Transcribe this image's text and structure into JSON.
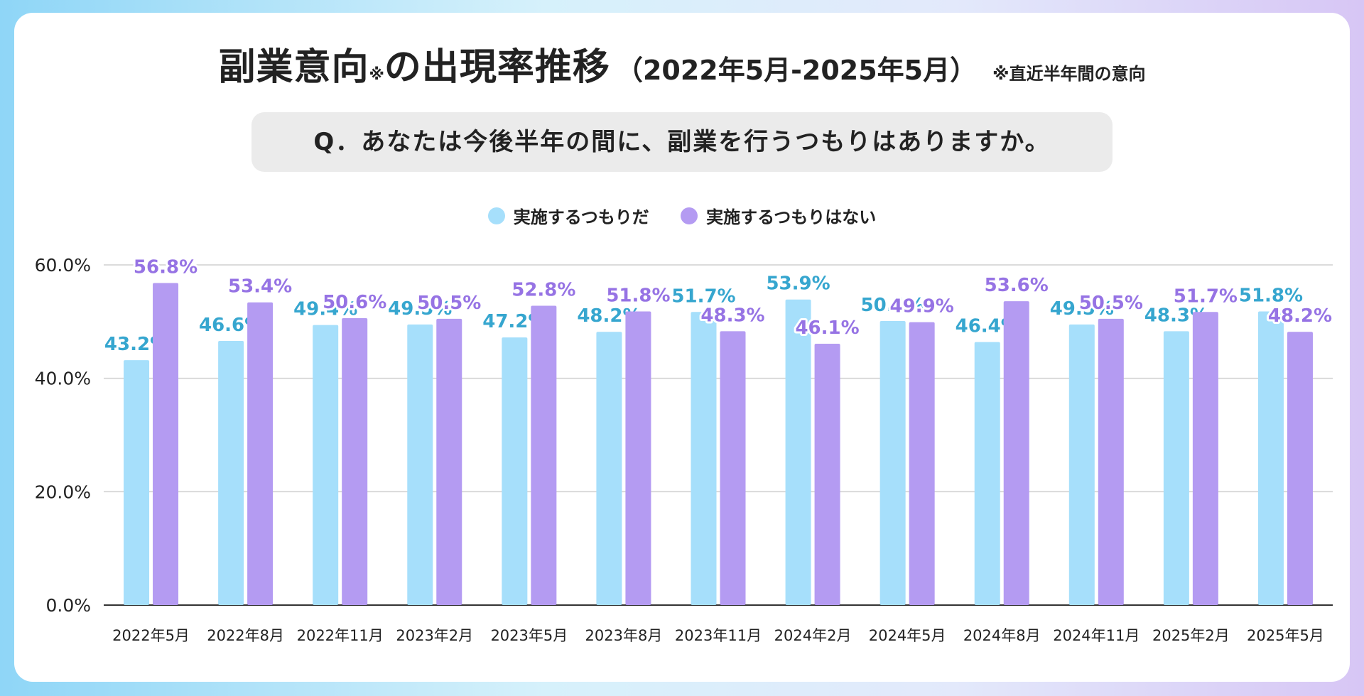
{
  "colors": {
    "yes": "#a6dffb",
    "no": "#b49bf2",
    "yes_label": "#36a6cf",
    "no_label": "#9673e4",
    "grid": "#cfcfcf"
  },
  "title": {
    "main": "副業意向",
    "mark": "※",
    "main2": "の出現率推移",
    "period": "（2022年5月-2025年5月）",
    "note": "※直近半年間の意向"
  },
  "question": "Q．あなたは今後半年の間に、副業を行うつもりはありますか。",
  "legend": {
    "yes": "実施するつもりだ",
    "no": "実施するつもりはない"
  },
  "chart_data": {
    "type": "bar",
    "categories": [
      "2022年5月",
      "2022年8月",
      "2022年11月",
      "2023年2月",
      "2023年5月",
      "2023年8月",
      "2023年11月",
      "2024年2月",
      "2024年5月",
      "2024年8月",
      "2024年11月",
      "2025年2月",
      "2025年5月"
    ],
    "series": [
      {
        "name": "実施するつもりだ",
        "values": [
          43.2,
          46.6,
          49.4,
          49.5,
          47.2,
          48.2,
          51.7,
          53.9,
          50.1,
          46.4,
          49.5,
          48.3,
          51.8
        ]
      },
      {
        "name": "実施するつもりはない",
        "values": [
          56.8,
          53.4,
          50.6,
          50.5,
          52.8,
          51.8,
          48.3,
          46.1,
          49.9,
          53.6,
          50.5,
          51.7,
          48.2
        ]
      }
    ],
    "yticks": [
      "0.0%",
      "20.0%",
      "40.0%",
      "60.0%"
    ],
    "ylim": [
      0,
      60
    ],
    "grid": true,
    "legend_position": "top"
  }
}
